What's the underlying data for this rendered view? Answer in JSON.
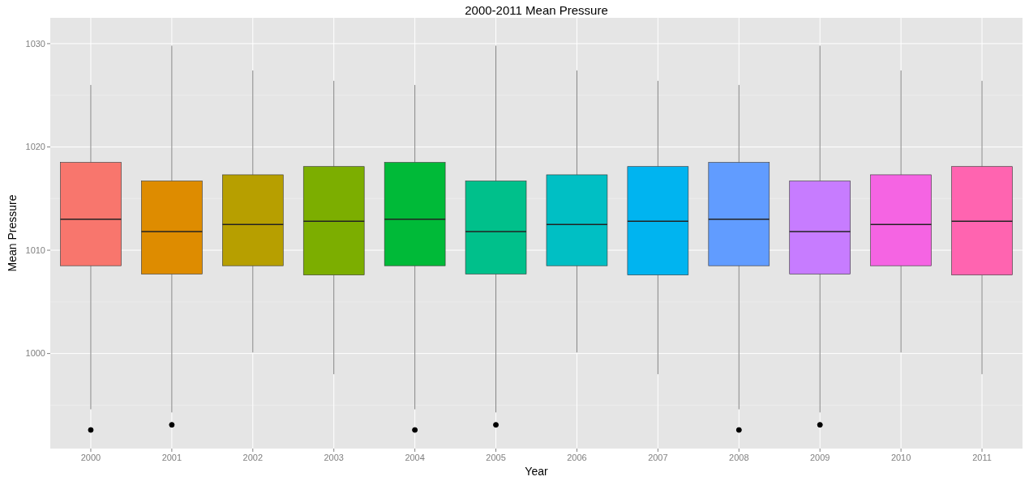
{
  "chart_data": {
    "type": "box",
    "title": "2000-2011 Mean Pressure",
    "xlabel": "Year",
    "ylabel": "Mean Pressure",
    "categories": [
      "2000",
      "2001",
      "2002",
      "2003",
      "2004",
      "2005",
      "2006",
      "2007",
      "2008",
      "2009",
      "2010",
      "2011"
    ],
    "colors": [
      "#f8766d",
      "#de8c00",
      "#b79f00",
      "#7cae00",
      "#00ba38",
      "#00c08b",
      "#00bfc4",
      "#00b4f0",
      "#619cff",
      "#c77cff",
      "#f564e3",
      "#ff64b0"
    ],
    "boxes": [
      {
        "low": 994.6,
        "q1": 1008.5,
        "median": 1013.0,
        "q3": 1018.5,
        "high": 1026.0,
        "outliers": [
          992.6
        ]
      },
      {
        "low": 994.3,
        "q1": 1007.7,
        "median": 1011.8,
        "q3": 1016.7,
        "high": 1029.8,
        "outliers": [
          993.1
        ]
      },
      {
        "low": 1000.1,
        "q1": 1008.5,
        "median": 1012.5,
        "q3": 1017.3,
        "high": 1027.4
      },
      {
        "low": 998.0,
        "q1": 1007.6,
        "median": 1012.8,
        "q3": 1018.1,
        "high": 1026.4
      },
      {
        "low": 994.6,
        "q1": 1008.5,
        "median": 1013.0,
        "q3": 1018.5,
        "high": 1026.0,
        "outliers": [
          992.6
        ]
      },
      {
        "low": 994.3,
        "q1": 1007.7,
        "median": 1011.8,
        "q3": 1016.7,
        "high": 1029.8,
        "outliers": [
          993.1
        ]
      },
      {
        "low": 1000.1,
        "q1": 1008.5,
        "median": 1012.5,
        "q3": 1017.3,
        "high": 1027.4
      },
      {
        "low": 998.0,
        "q1": 1007.6,
        "median": 1012.8,
        "q3": 1018.1,
        "high": 1026.4
      },
      {
        "low": 994.6,
        "q1": 1008.5,
        "median": 1013.0,
        "q3": 1018.5,
        "high": 1026.0,
        "outliers": [
          992.6
        ]
      },
      {
        "low": 994.3,
        "q1": 1007.7,
        "median": 1011.8,
        "q3": 1016.7,
        "high": 1029.8,
        "outliers": [
          993.1
        ]
      },
      {
        "low": 1000.1,
        "q1": 1008.5,
        "median": 1012.5,
        "q3": 1017.3,
        "high": 1027.4
      },
      {
        "low": 998.0,
        "q1": 1007.6,
        "median": 1012.8,
        "q3": 1018.1,
        "high": 1026.4
      }
    ],
    "ylim": [
      990.8,
      1032.5
    ],
    "yticks": [
      1000,
      1010,
      1020,
      1030
    ],
    "grid": true
  }
}
